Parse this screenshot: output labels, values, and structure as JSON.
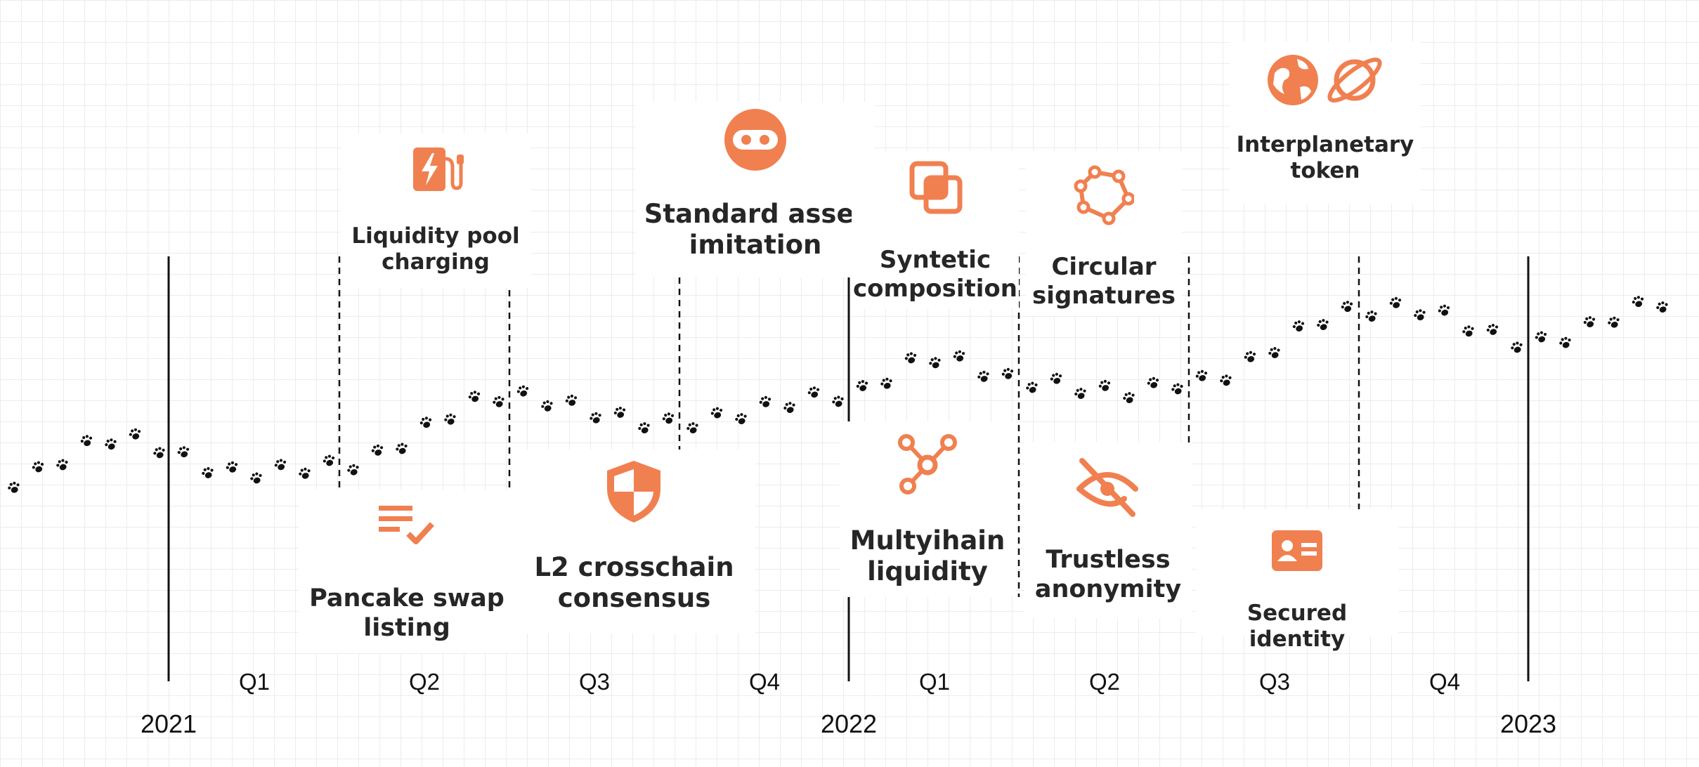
{
  "colors": {
    "accent": "#F08050",
    "text": "#262626",
    "line": "#111111",
    "paw": "#111111"
  },
  "years": [
    {
      "label": "2021"
    },
    {
      "label": "2022"
    },
    {
      "label": "2023"
    }
  ],
  "quarters": [
    "Q1",
    "Q2",
    "Q3",
    "Q4",
    "Q1",
    "Q2",
    "Q3",
    "Q4"
  ],
  "milestones": [
    {
      "label": "Liquidity pool\ncharging",
      "icon": "ev-charger-icon"
    },
    {
      "label": "Pancake swap\nlisting",
      "icon": "checklist-icon"
    },
    {
      "label": "Standard asset\nimitation",
      "icon": "ninja-mask-icon"
    },
    {
      "label": "L2 crosschain\nconsensus",
      "icon": "shield-icon"
    },
    {
      "label": "Syntetic\ncomposition",
      "icon": "layered-squares-icon"
    },
    {
      "label": "Multyihain\nliquidity",
      "icon": "network-nodes-icon"
    },
    {
      "label": "Circular\nsignatures",
      "icon": "polygon-nodes-icon"
    },
    {
      "label": "Trustless\nanonymity",
      "icon": "eye-off-icon"
    },
    {
      "label": "Interplanetary\ntoken",
      "icon": "globe-planet-icon"
    },
    {
      "label": "Secured identity",
      "icon": "id-card-icon"
    }
  ]
}
